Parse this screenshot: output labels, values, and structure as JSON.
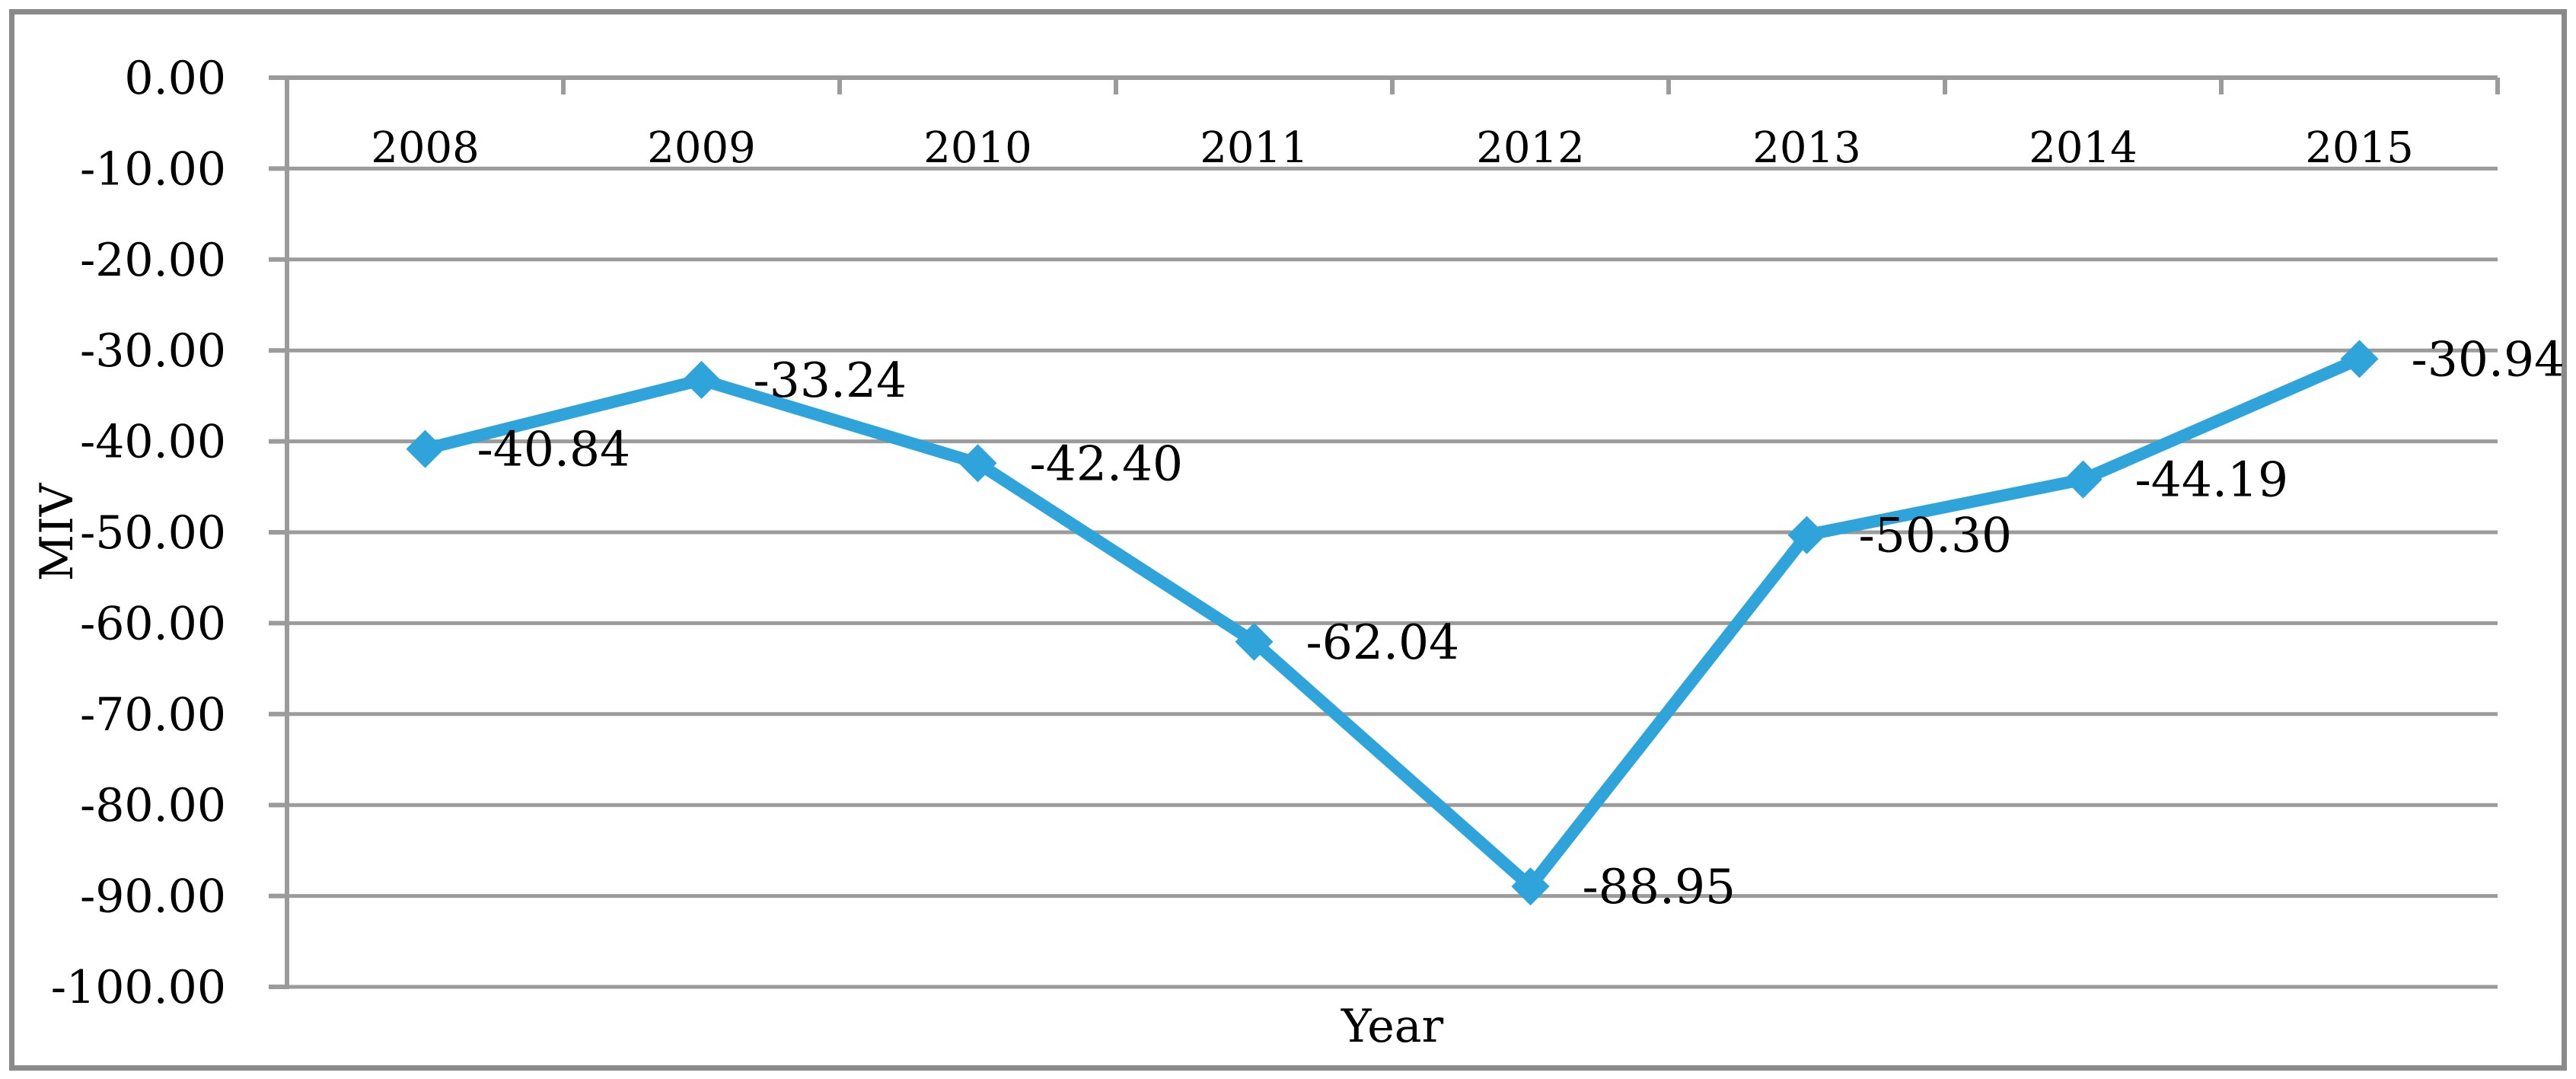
{
  "window": {
    "background": "#ffffff",
    "border_color": "#8A8A8A"
  },
  "chart_data": {
    "type": "line",
    "title": "",
    "xlabel": "Year",
    "ylabel": "MIV",
    "categories": [
      "2008",
      "2009",
      "2010",
      "2011",
      "2012",
      "2013",
      "2014",
      "2015"
    ],
    "series": [
      {
        "name": "MIV",
        "color": "#2EA4DB",
        "values": [
          -40.84,
          -33.24,
          -42.4,
          -62.04,
          -88.95,
          -50.3,
          -44.19,
          -30.94
        ]
      }
    ],
    "data_labels": [
      "-40.84",
      "-33.24",
      "-42.40",
      "-62.04",
      "-88.95",
      "-50.30",
      "-44.19",
      "-30.94"
    ],
    "ylim": [
      -100,
      0
    ],
    "ytick_step": 10,
    "ytick_labels": [
      "0.00",
      "-10.00",
      "-20.00",
      "-30.00",
      "-40.00",
      "-50.00",
      "-60.00",
      "-70.00",
      "-80.00",
      "-90.00",
      "-100.00"
    ],
    "grid": "horizontal",
    "gridline_color": "#9B9B9B",
    "axis_color": "#9B9B9B",
    "text_color": "#000000",
    "legend": "none",
    "marker": "diamond",
    "marker_size": 25,
    "line_width": 16
  }
}
